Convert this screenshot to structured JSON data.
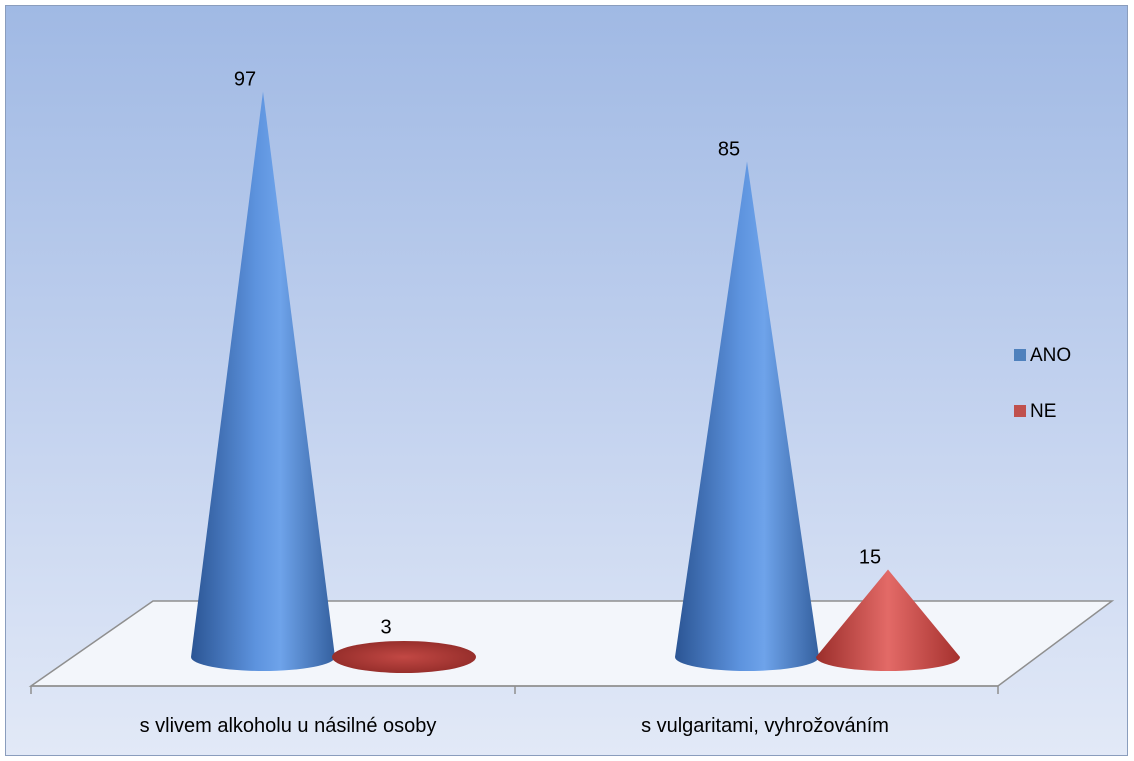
{
  "chart_data": {
    "type": "bar",
    "shape": "cone-3d",
    "categories": [
      "s vlivem alkoholu u násilné osoby",
      "s vulgaritami, vyhrožováním"
    ],
    "series": [
      {
        "name": "ANO",
        "values": [
          97,
          85
        ],
        "color": "#4f81bd"
      },
      {
        "name": "NE",
        "values": [
          3,
          15
        ],
        "color": "#c0504d"
      }
    ],
    "ylim": [
      0,
      100
    ],
    "data_labels": true,
    "legend_position": "right",
    "grid": false
  }
}
